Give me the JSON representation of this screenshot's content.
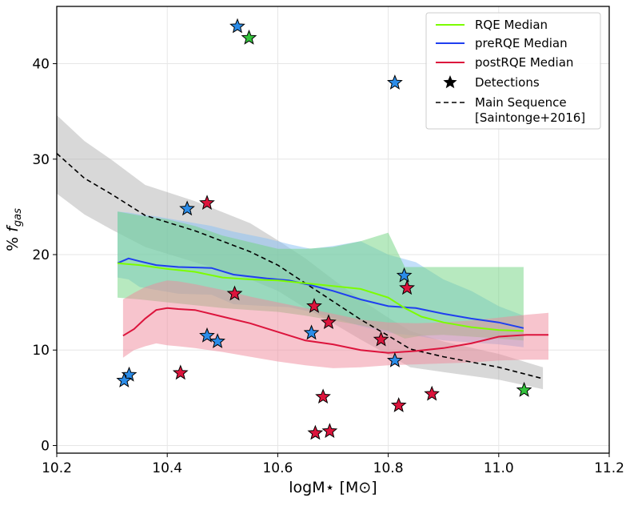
{
  "chart_data": {
    "type": "line",
    "xlabel": "logM⋆ [M⊙]",
    "ylabel_prefix": "% ",
    "ylabel_var": "f",
    "ylabel_sub": "gas",
    "xlim": [
      10.2,
      11.2
    ],
    "ylim": [
      -0.8,
      46
    ],
    "xticks": [
      10.2,
      10.4,
      10.6,
      10.8,
      11.0,
      11.2
    ],
    "xtick_labels": [
      "10.2",
      "10.4",
      "10.6",
      "10.8",
      "11.0",
      "11.2"
    ],
    "yticks": [
      0,
      10,
      20,
      30,
      40
    ],
    "ytick_labels": [
      "0",
      "10",
      "20",
      "30",
      "40"
    ],
    "grid": true,
    "legend_position": "top-right",
    "legend": [
      {
        "label": "RQE Median",
        "kind": "line",
        "color": "#7cfc00"
      },
      {
        "label": "preRQE Median",
        "kind": "line",
        "color": "#1f3ff0"
      },
      {
        "label": "postRQE Median",
        "kind": "line",
        "color": "#dc143c"
      },
      {
        "label": "Detections",
        "kind": "star",
        "color": "#000000"
      },
      {
        "label": "Main Sequence",
        "label2": "[Saintonge+2016]",
        "kind": "dashed",
        "color": "#000000"
      }
    ],
    "series": [
      {
        "name": "Main Sequence [Saintonge+2016]",
        "color": "#000000",
        "style": "dashed",
        "band_color": "#a9a9a9",
        "x": [
          10.2,
          10.25,
          10.3,
          10.36,
          10.45,
          10.55,
          10.6,
          10.65,
          10.7,
          10.75,
          10.8,
          10.84,
          10.9,
          11.0,
          11.08
        ],
        "y": [
          30.6,
          28.0,
          26.3,
          24.1,
          22.5,
          20.3,
          18.9,
          17.0,
          15.1,
          13.2,
          11.5,
          10.1,
          9.3,
          8.2,
          7.0
        ],
        "band_low": [
          26.4,
          24.2,
          22.6,
          20.8,
          19.2,
          17.4,
          16.2,
          14.4,
          12.8,
          11.1,
          9.5,
          8.2,
          7.7,
          6.9,
          5.9
        ],
        "band_high": [
          34.6,
          31.9,
          29.9,
          27.3,
          25.6,
          23.3,
          21.5,
          19.6,
          17.4,
          15.3,
          13.4,
          12.0,
          10.9,
          9.6,
          8.2
        ]
      },
      {
        "name": "preRQE Median",
        "color": "#1f3ff0",
        "band_color": "#87bff5",
        "x": [
          10.31,
          10.33,
          10.35,
          10.38,
          10.42,
          10.48,
          10.52,
          10.58,
          10.62,
          10.66,
          10.7,
          10.75,
          10.8,
          10.85,
          10.9,
          10.95,
          11.0,
          11.045
        ],
        "y": [
          19.1,
          19.6,
          19.3,
          18.9,
          18.7,
          18.6,
          17.9,
          17.5,
          17.3,
          16.8,
          16.2,
          15.3,
          14.6,
          14.4,
          13.8,
          13.3,
          12.9,
          12.3
        ],
        "band_low": [
          17.6,
          17.4,
          16.6,
          16.3,
          15.9,
          15.8,
          14.8,
          14.6,
          14.5,
          14.0,
          13.4,
          12.5,
          11.8,
          11.5,
          11.0,
          10.8,
          10.6,
          10.3
        ],
        "band_high": [
          24.5,
          24.4,
          24.2,
          24.0,
          23.6,
          23.0,
          22.4,
          21.7,
          21.1,
          20.6,
          20.9,
          21.4,
          20.0,
          19.2,
          17.4,
          16.2,
          14.6,
          13.6
        ]
      },
      {
        "name": "RQE Median",
        "color": "#7cfc00",
        "band_color": "#6fd37f",
        "x": [
          10.31,
          10.35,
          10.4,
          10.45,
          10.5,
          10.55,
          10.6,
          10.65,
          10.7,
          10.75,
          10.8,
          10.83,
          10.86,
          10.9,
          10.95,
          11.0,
          11.045
        ],
        "y": [
          19.1,
          18.9,
          18.5,
          18.2,
          17.6,
          17.4,
          17.3,
          17.0,
          16.7,
          16.4,
          15.5,
          14.4,
          13.5,
          12.9,
          12.4,
          12.1,
          12.0
        ],
        "band_low": [
          15.5,
          15.3,
          15.0,
          14.7,
          14.4,
          14.2,
          14.0,
          13.6,
          13.1,
          12.6,
          12.0,
          11.2,
          11.5,
          11.6,
          11.4,
          11.2,
          11.0
        ],
        "band_high": [
          24.5,
          24.1,
          23.7,
          23.0,
          22.0,
          21.3,
          20.6,
          20.6,
          20.8,
          21.4,
          22.3,
          18.7,
          18.7,
          18.7,
          18.7,
          18.7,
          18.7
        ]
      },
      {
        "name": "postRQE Median",
        "color": "#dc143c",
        "band_color": "#f08a9c",
        "x": [
          10.32,
          10.34,
          10.36,
          10.38,
          10.4,
          10.42,
          10.45,
          10.5,
          10.55,
          10.6,
          10.65,
          10.7,
          10.75,
          10.8,
          10.85,
          10.9,
          10.95,
          11.0,
          11.05,
          11.09
        ],
        "y": [
          11.5,
          12.2,
          13.3,
          14.2,
          14.4,
          14.3,
          14.2,
          13.5,
          12.8,
          11.9,
          11.0,
          10.6,
          10.0,
          9.7,
          9.9,
          10.2,
          10.7,
          11.4,
          11.6,
          11.6
        ],
        "band_low": [
          9.2,
          10.0,
          10.4,
          10.7,
          10.5,
          10.4,
          10.2,
          9.8,
          9.3,
          8.8,
          8.4,
          8.1,
          8.2,
          8.4,
          8.5,
          8.6,
          8.7,
          8.9,
          9.0,
          9.0
        ],
        "band_high": [
          15.3,
          16.0,
          16.6,
          17.0,
          17.3,
          17.2,
          16.9,
          16.3,
          15.6,
          15.0,
          14.4,
          13.8,
          13.2,
          12.9,
          12.8,
          12.9,
          13.1,
          13.4,
          13.7,
          13.9
        ]
      }
    ],
    "detections": [
      {
        "x": 10.527,
        "y": 43.9,
        "color": "#2b8ce8"
      },
      {
        "x": 10.548,
        "y": 42.7,
        "color": "#33c33c"
      },
      {
        "x": 10.812,
        "y": 38.0,
        "color": "#2b8ce8"
      },
      {
        "x": 10.472,
        "y": 25.4,
        "color": "#dc143c"
      },
      {
        "x": 10.436,
        "y": 24.8,
        "color": "#2b8ce8"
      },
      {
        "x": 10.829,
        "y": 17.8,
        "color": "#2b8ce8"
      },
      {
        "x": 10.834,
        "y": 16.5,
        "color": "#dc143c"
      },
      {
        "x": 10.522,
        "y": 15.9,
        "color": "#dc143c"
      },
      {
        "x": 10.666,
        "y": 14.6,
        "color": "#dc143c"
      },
      {
        "x": 10.692,
        "y": 12.9,
        "color": "#dc143c"
      },
      {
        "x": 10.661,
        "y": 11.8,
        "color": "#2b8ce8"
      },
      {
        "x": 10.472,
        "y": 11.5,
        "color": "#2b8ce8"
      },
      {
        "x": 10.491,
        "y": 10.9,
        "color": "#2b8ce8"
      },
      {
        "x": 10.787,
        "y": 11.1,
        "color": "#dc143c"
      },
      {
        "x": 10.812,
        "y": 8.9,
        "color": "#2b8ce8"
      },
      {
        "x": 10.331,
        "y": 7.4,
        "color": "#2b8ce8"
      },
      {
        "x": 10.322,
        "y": 6.8,
        "color": "#2b8ce8"
      },
      {
        "x": 10.424,
        "y": 7.6,
        "color": "#dc143c"
      },
      {
        "x": 10.682,
        "y": 5.1,
        "color": "#dc143c"
      },
      {
        "x": 10.879,
        "y": 5.4,
        "color": "#dc143c"
      },
      {
        "x": 10.819,
        "y": 4.2,
        "color": "#dc143c"
      },
      {
        "x": 10.694,
        "y": 1.5,
        "color": "#dc143c"
      },
      {
        "x": 10.668,
        "y": 1.3,
        "color": "#dc143c"
      },
      {
        "x": 11.046,
        "y": 5.8,
        "color": "#33c33c"
      }
    ]
  }
}
